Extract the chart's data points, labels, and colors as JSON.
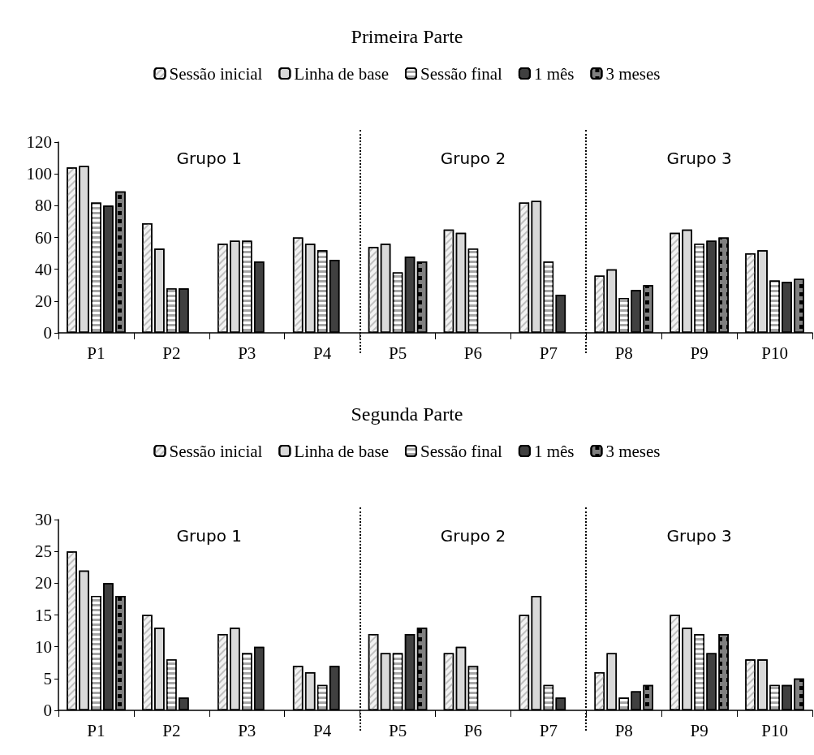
{
  "chart_data": [
    {
      "type": "bar",
      "title": "Primeira Parte",
      "categories": [
        "P1",
        "P2",
        "P3",
        "P4",
        "P5",
        "P6",
        "P7",
        "P8",
        "P9",
        "P10"
      ],
      "series": [
        {
          "name": "Sessão inicial",
          "color": "#f2f2f2",
          "values": [
            104,
            69,
            56,
            60,
            54,
            65,
            82,
            36,
            63,
            50
          ]
        },
        {
          "name": "Linha de base",
          "color": "#d9d9d9",
          "values": [
            105,
            53,
            58,
            56,
            56,
            63,
            83,
            40,
            65,
            52
          ]
        },
        {
          "name": "Sessão final",
          "color": "#a6a6a6",
          "values": [
            82,
            28,
            58,
            52,
            38,
            53,
            45,
            22,
            56,
            33
          ]
        },
        {
          "name": "1 mês",
          "color": "#404040",
          "values": [
            80,
            28,
            45,
            46,
            48,
            null,
            24,
            27,
            58,
            32
          ]
        },
        {
          "name": "3 meses",
          "color": "#808080",
          "values": [
            89,
            null,
            null,
            null,
            45,
            null,
            null,
            30,
            60,
            34
          ]
        }
      ],
      "ylim": [
        0,
        120
      ],
      "yticks": [
        0,
        20,
        40,
        60,
        80,
        100,
        120
      ],
      "grid": false,
      "legend": "top",
      "annotations": [
        "Grupo 1",
        "Grupo 2",
        "Grupo 3"
      ]
    },
    {
      "type": "bar",
      "title": "Segunda Parte",
      "categories": [
        "P1",
        "P2",
        "P3",
        "P4",
        "P5",
        "P6",
        "P7",
        "P8",
        "P9",
        "P10"
      ],
      "series": [
        {
          "name": "Sessão inicial",
          "color": "#f2f2f2",
          "values": [
            25,
            15,
            12,
            7,
            12,
            9,
            15,
            6,
            15,
            8
          ]
        },
        {
          "name": "Linha de base",
          "color": "#d9d9d9",
          "values": [
            22,
            13,
            13,
            6,
            9,
            10,
            18,
            9,
            13,
            8
          ]
        },
        {
          "name": "Sessão final",
          "color": "#a6a6a6",
          "values": [
            18,
            8,
            9,
            4,
            9,
            7,
            4,
            2,
            12,
            4
          ]
        },
        {
          "name": "1 mês",
          "color": "#404040",
          "values": [
            20,
            2,
            10,
            7,
            12,
            null,
            2,
            3,
            9,
            4
          ]
        },
        {
          "name": "3 meses",
          "color": "#808080",
          "values": [
            18,
            null,
            null,
            null,
            13,
            null,
            null,
            4,
            12,
            5
          ]
        }
      ],
      "ylim": [
        0,
        30
      ],
      "yticks": [
        0,
        5,
        10,
        15,
        20,
        25,
        30
      ],
      "grid": false,
      "legend": "top",
      "annotations": [
        "Grupo 1",
        "Grupo 2",
        "Grupo 3"
      ]
    }
  ]
}
